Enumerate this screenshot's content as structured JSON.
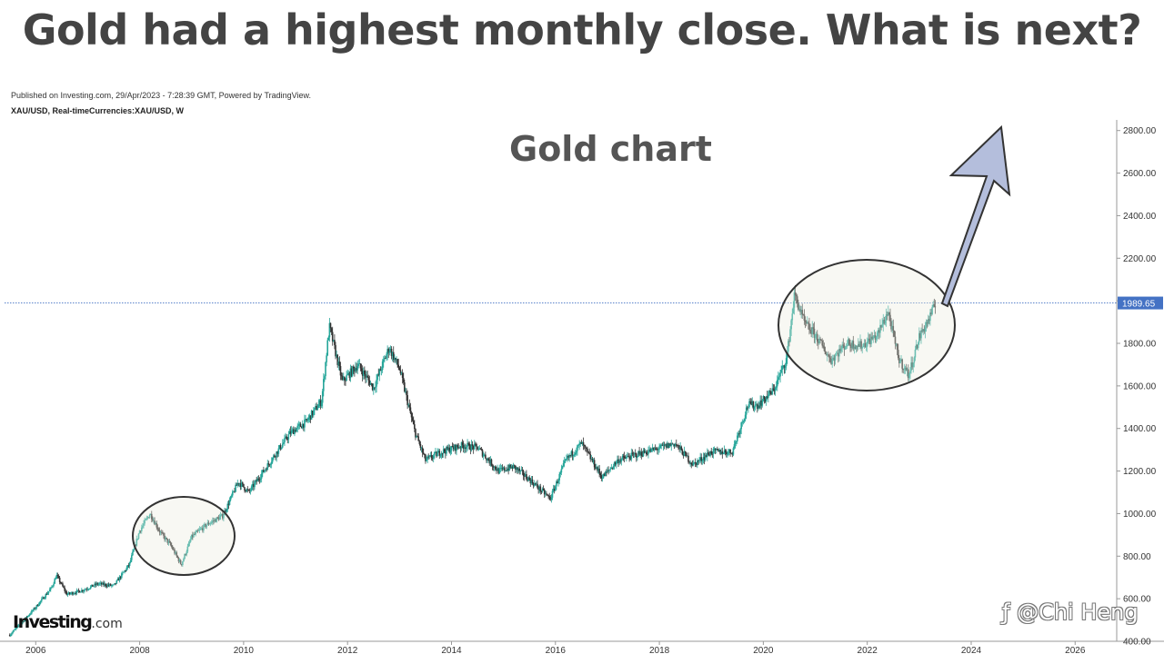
{
  "headline": "Gold had a highest monthly close. What is next?",
  "published": "Published on Investing.com, 29/Apr/2023 - 7:28:39 GMT, Powered by TradingView.",
  "symbol": "XAU/USD, Real-timeCurrencies:XAU/USD, W",
  "logo": {
    "main": "Investing",
    "suffix": ".com"
  },
  "watermark": "ƒ @Chi Heng",
  "colors": {
    "candle_up": "#26a69a",
    "candle_down": "#333333",
    "price_line": "#4472c4",
    "price_label_bg": "#4472c4",
    "arrow_fill": "#b4bedc"
  },
  "chart_data": {
    "type": "line",
    "title": "Gold chart",
    "xlabel": "",
    "ylabel": "",
    "xlim": [
      2005.4,
      2026.8
    ],
    "ylim": [
      400,
      2850
    ],
    "x_ticks": [
      "2006",
      "2008",
      "2010",
      "2012",
      "2014",
      "2016",
      "2018",
      "2020",
      "2022",
      "2024",
      "2026"
    ],
    "y_ticks": [
      "400.00",
      "600.00",
      "800.00",
      "1000.00",
      "1200.00",
      "1400.00",
      "1600.00",
      "1800.00",
      "2000.00",
      "2200.00",
      "2400.00",
      "2600.00",
      "2800.00"
    ],
    "current_price": 1989.65,
    "current_price_label": "1989.65",
    "series": [
      {
        "x": [
          2005.5,
          2005.7,
          2006.0,
          2006.3,
          2006.4,
          2006.6,
          2006.9,
          2007.2,
          2007.5,
          2007.8,
          2008.0,
          2008.2,
          2008.4,
          2008.6,
          2008.8,
          2009.0,
          2009.3,
          2009.6,
          2009.9,
          2010.1,
          2010.5,
          2010.9,
          2011.2,
          2011.5,
          2011.65,
          2011.9,
          2012.2,
          2012.5,
          2012.8,
          2013.0,
          2013.3,
          2013.5,
          2013.8,
          2014.2,
          2014.5,
          2014.9,
          2015.2,
          2015.5,
          2015.9,
          2016.2,
          2016.5,
          2016.9,
          2017.2,
          2017.6,
          2017.9,
          2018.3,
          2018.65,
          2019.0,
          2019.4,
          2019.7,
          2019.9,
          2020.2,
          2020.45,
          2020.6,
          2020.8,
          2021.0,
          2021.3,
          2021.6,
          2021.9,
          2022.2,
          2022.4,
          2022.6,
          2022.8,
          2023.0,
          2023.2,
          2023.32
        ],
        "y": [
          430,
          480,
          560,
          650,
          710,
          620,
          640,
          670,
          660,
          760,
          920,
          1000,
          910,
          850,
          760,
          890,
          950,
          990,
          1150,
          1100,
          1240,
          1380,
          1430,
          1530,
          1880,
          1620,
          1700,
          1590,
          1780,
          1680,
          1380,
          1250,
          1290,
          1320,
          1310,
          1200,
          1220,
          1160,
          1070,
          1250,
          1330,
          1170,
          1250,
          1280,
          1300,
          1330,
          1230,
          1290,
          1290,
          1510,
          1510,
          1580,
          1730,
          2030,
          1890,
          1840,
          1720,
          1800,
          1790,
          1840,
          1950,
          1730,
          1650,
          1830,
          1920,
          1990
        ]
      }
    ]
  }
}
